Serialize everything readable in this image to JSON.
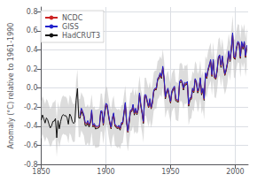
{
  "chart_data": {
    "type": "line",
    "ylabel": "Anomaly (°C) relative to 1961-1990",
    "xlim": [
      1850,
      2010
    ],
    "ylim": [
      -0.8,
      0.85
    ],
    "xticks": [
      1850,
      1900,
      1950,
      2000
    ],
    "yticks": [
      -0.8,
      -0.6,
      -0.4,
      -0.2,
      {
        "value": 0,
        "label": "0.0"
      },
      0.2,
      0.4,
      0.6,
      0.8
    ],
    "grid": true,
    "legend": "upper left",
    "x": [
      1850,
      1851,
      1852,
      1853,
      1854,
      1855,
      1856,
      1857,
      1858,
      1859,
      1860,
      1861,
      1862,
      1863,
      1864,
      1865,
      1866,
      1867,
      1868,
      1869,
      1870,
      1871,
      1872,
      1873,
      1874,
      1875,
      1876,
      1877,
      1878,
      1879,
      1880,
      1881,
      1882,
      1883,
      1884,
      1885,
      1886,
      1887,
      1888,
      1889,
      1890,
      1891,
      1892,
      1893,
      1894,
      1895,
      1896,
      1897,
      1898,
      1899,
      1900,
      1901,
      1902,
      1903,
      1904,
      1905,
      1906,
      1907,
      1908,
      1909,
      1910,
      1911,
      1912,
      1913,
      1914,
      1915,
      1916,
      1917,
      1918,
      1919,
      1920,
      1921,
      1922,
      1923,
      1924,
      1925,
      1926,
      1927,
      1928,
      1929,
      1930,
      1931,
      1932,
      1933,
      1934,
      1935,
      1936,
      1937,
      1938,
      1939,
      1940,
      1941,
      1942,
      1943,
      1944,
      1945,
      1946,
      1947,
      1948,
      1949,
      1950,
      1951,
      1952,
      1953,
      1954,
      1955,
      1956,
      1957,
      1958,
      1959,
      1960,
      1961,
      1962,
      1963,
      1964,
      1965,
      1966,
      1967,
      1968,
      1969,
      1970,
      1971,
      1972,
      1973,
      1974,
      1975,
      1976,
      1977,
      1978,
      1979,
      1980,
      1981,
      1982,
      1983,
      1984,
      1985,
      1986,
      1987,
      1988,
      1989,
      1990,
      1991,
      1992,
      1993,
      1994,
      1995,
      1996,
      1997,
      1998,
      1999,
      2000,
      2001,
      2002,
      2003,
      2004,
      2005,
      2006,
      2007,
      2008,
      2009
    ],
    "series": [
      {
        "name": "NCDC",
        "color": "#cc2222",
        "values": [
          null,
          null,
          null,
          null,
          null,
          null,
          null,
          null,
          null,
          null,
          null,
          null,
          null,
          null,
          null,
          null,
          null,
          null,
          null,
          null,
          null,
          null,
          null,
          null,
          null,
          null,
          null,
          null,
          null,
          null,
          -0.3,
          -0.22,
          -0.25,
          -0.29,
          -0.37,
          -0.38,
          -0.35,
          -0.39,
          -0.36,
          -0.24,
          -0.4,
          -0.38,
          -0.41,
          -0.41,
          -0.41,
          -0.4,
          -0.25,
          -0.25,
          -0.38,
          -0.26,
          -0.17,
          -0.18,
          -0.28,
          -0.36,
          -0.42,
          -0.32,
          -0.27,
          -0.39,
          -0.4,
          -0.42,
          -0.4,
          -0.43,
          -0.37,
          -0.37,
          -0.26,
          -0.16,
          -0.35,
          -0.46,
          -0.35,
          -0.24,
          -0.24,
          -0.18,
          -0.27,
          -0.22,
          -0.27,
          -0.22,
          -0.06,
          -0.18,
          -0.26,
          -0.36,
          -0.08,
          -0.08,
          -0.14,
          -0.2,
          -0.12,
          -0.21,
          -0.15,
          -0.03,
          -0.01,
          -0.01,
          0.09,
          0.11,
          0.15,
          0.11,
          0.22,
          0.1,
          -0.1,
          -0.04,
          -0.01,
          -0.08,
          -0.15,
          -0.04,
          -0.01,
          0.01,
          -0.12,
          -0.13,
          -0.14,
          0.06,
          0.08,
          0.06,
          -0.01,
          0.05,
          0.04,
          0.06,
          -0.18,
          -0.11,
          -0.11,
          -0.01,
          -0.04,
          0.09,
          0.06,
          -0.04,
          0.0,
          0.1,
          -0.06,
          -0.01,
          -0.12,
          0.15,
          0.11,
          0.19,
          0.24,
          0.29,
          0.13,
          0.29,
          0.11,
          0.1,
          0.18,
          0.32,
          0.34,
          0.23,
          0.33,
          0.22,
          0.14,
          0.19,
          0.26,
          0.38,
          0.29,
          0.41,
          0.57,
          0.32,
          0.31,
          0.42,
          0.48,
          0.47,
          0.32,
          0.48,
          0.42,
          0.48,
          0.33,
          0.44
        ]
      },
      {
        "name": "GISS",
        "color": "#2222cc",
        "values": [
          null,
          null,
          null,
          null,
          null,
          null,
          null,
          null,
          null,
          null,
          null,
          null,
          null,
          null,
          null,
          null,
          null,
          null,
          null,
          null,
          null,
          null,
          null,
          null,
          null,
          null,
          null,
          null,
          null,
          null,
          -0.29,
          -0.21,
          -0.24,
          -0.28,
          -0.36,
          -0.37,
          -0.34,
          -0.38,
          -0.35,
          -0.23,
          -0.39,
          -0.37,
          -0.4,
          -0.4,
          -0.4,
          -0.39,
          -0.24,
          -0.24,
          -0.37,
          -0.25,
          -0.16,
          -0.17,
          -0.27,
          -0.35,
          -0.41,
          -0.31,
          -0.26,
          -0.38,
          -0.39,
          -0.41,
          -0.39,
          -0.42,
          -0.36,
          -0.36,
          -0.25,
          -0.15,
          -0.34,
          -0.45,
          -0.34,
          -0.23,
          -0.23,
          -0.17,
          -0.26,
          -0.21,
          -0.26,
          -0.21,
          -0.05,
          -0.17,
          -0.25,
          -0.35,
          -0.07,
          -0.07,
          -0.13,
          -0.19,
          -0.11,
          -0.2,
          -0.14,
          -0.02,
          0.0,
          0.0,
          0.1,
          0.12,
          0.16,
          0.12,
          0.23,
          0.11,
          -0.09,
          -0.03,
          0.0,
          -0.07,
          -0.14,
          -0.03,
          0.0,
          0.02,
          -0.11,
          -0.12,
          -0.13,
          0.07,
          0.09,
          0.07,
          0.0,
          0.06,
          0.05,
          0.07,
          -0.17,
          -0.1,
          -0.1,
          0.0,
          -0.03,
          0.1,
          0.07,
          -0.03,
          0.01,
          0.11,
          -0.05,
          0.0,
          -0.11,
          0.16,
          0.12,
          0.2,
          0.25,
          0.3,
          0.14,
          0.3,
          0.12,
          0.11,
          0.19,
          0.33,
          0.35,
          0.24,
          0.34,
          0.23,
          0.15,
          0.2,
          0.27,
          0.39,
          0.3,
          0.42,
          0.58,
          0.33,
          0.32,
          0.43,
          0.49,
          0.48,
          0.33,
          0.49,
          0.43,
          0.49,
          0.34,
          0.45
        ]
      },
      {
        "name": "HadCRUT3",
        "color": "#111111",
        "values": [
          -0.336,
          -0.282,
          -0.32,
          -0.367,
          -0.313,
          -0.333,
          -0.378,
          -0.418,
          -0.398,
          -0.35,
          -0.347,
          -0.32,
          -0.521,
          -0.342,
          -0.427,
          -0.351,
          -0.298,
          -0.278,
          -0.29,
          -0.289,
          -0.311,
          -0.379,
          -0.272,
          -0.296,
          -0.349,
          -0.371,
          -0.358,
          -0.126,
          -0.004,
          -0.313,
          -0.317,
          -0.242,
          -0.274,
          -0.302,
          -0.394,
          -0.395,
          -0.368,
          -0.41,
          -0.37,
          -0.263,
          -0.409,
          -0.391,
          -0.43,
          -0.422,
          -0.421,
          -0.409,
          -0.257,
          -0.258,
          -0.39,
          -0.273,
          -0.182,
          -0.193,
          -0.293,
          -0.373,
          -0.428,
          -0.329,
          -0.279,
          -0.4,
          -0.413,
          -0.429,
          -0.413,
          -0.441,
          -0.382,
          -0.376,
          -0.27,
          -0.172,
          -0.362,
          -0.465,
          -0.363,
          -0.25,
          -0.246,
          -0.193,
          -0.283,
          -0.226,
          -0.28,
          -0.227,
          -0.07,
          -0.19,
          -0.267,
          -0.371,
          -0.092,
          -0.091,
          -0.15,
          -0.206,
          -0.13,
          -0.218,
          -0.158,
          -0.039,
          -0.015,
          -0.018,
          0.082,
          0.097,
          0.135,
          0.1,
          0.208,
          0.089,
          -0.113,
          -0.049,
          -0.018,
          -0.093,
          -0.158,
          -0.051,
          -0.018,
          0.003,
          -0.133,
          -0.142,
          -0.148,
          0.051,
          0.067,
          0.05,
          -0.021,
          0.04,
          0.031,
          0.055,
          -0.19,
          -0.124,
          -0.119,
          -0.022,
          -0.049,
          0.083,
          0.052,
          -0.052,
          -0.014,
          0.092,
          -0.072,
          -0.018,
          -0.129,
          0.138,
          0.099,
          0.181,
          0.233,
          0.278,
          0.122,
          0.282,
          0.104,
          0.093,
          0.174,
          0.311,
          0.332,
          0.216,
          0.319,
          0.208,
          0.133,
          0.182,
          0.253,
          0.369,
          0.279,
          0.401,
          0.562,
          0.313,
          0.302,
          0.411,
          0.471,
          0.462,
          0.311,
          0.469,
          0.408,
          0.473,
          0.32,
          0.43
        ],
        "upper": [
          -0.136,
          -0.082,
          -0.12,
          -0.167,
          -0.113,
          -0.133,
          -0.178,
          -0.218,
          -0.198,
          -0.15,
          -0.147,
          -0.12,
          -0.321,
          -0.142,
          -0.227,
          -0.151,
          -0.098,
          -0.078,
          -0.09,
          -0.089,
          -0.111,
          -0.179,
          -0.072,
          -0.096,
          -0.149,
          -0.171,
          -0.158,
          0.074,
          0.196,
          -0.113,
          -0.117,
          -0.042,
          -0.074,
          -0.102,
          -0.194,
          -0.195,
          -0.168,
          -0.21,
          -0.17,
          -0.063,
          -0.209,
          -0.191,
          -0.23,
          -0.222,
          -0.221,
          -0.209,
          -0.057,
          -0.058,
          -0.19,
          -0.073,
          0.018,
          0.007,
          -0.093,
          -0.173,
          -0.228,
          -0.129,
          -0.079,
          -0.2,
          -0.213,
          -0.229,
          -0.213,
          -0.241,
          -0.182,
          -0.176,
          -0.07,
          0.028,
          -0.162,
          -0.265,
          -0.163,
          -0.05,
          -0.046,
          0.007,
          -0.083,
          0.0,
          -0.08,
          0.0,
          0.13,
          -0.01,
          -0.067,
          -0.171,
          0.108,
          0.109,
          0.05,
          -0.006,
          0.07,
          -0.018,
          0.042,
          0.161,
          0.185,
          0.182,
          0.282,
          0.297,
          0.335,
          0.3,
          0.408,
          0.289,
          0.087,
          0.151,
          0.182,
          0.107,
          0.042,
          0.149,
          0.182,
          0.203,
          0.067,
          0.058,
          0.052,
          0.251,
          0.267,
          0.25,
          0.179,
          0.24,
          0.231,
          0.255,
          0.01,
          0.076,
          0.081,
          0.178,
          0.151,
          0.283,
          0.252,
          0.148,
          0.186,
          0.292,
          0.128,
          0.182,
          0.071,
          0.338,
          0.299,
          0.381,
          0.433,
          0.478,
          0.322,
          0.482,
          0.304,
          0.293,
          0.374,
          0.511,
          0.532,
          0.416,
          0.519,
          0.408,
          0.333,
          0.382,
          0.453,
          0.569,
          0.479,
          0.601,
          0.762,
          0.513,
          0.502,
          0.611,
          0.671,
          0.662,
          0.511,
          0.669,
          0.608,
          0.673,
          0.52,
          0.63
        ],
        "lower": [
          -0.536,
          -0.482,
          -0.52,
          -0.567,
          -0.513,
          -0.533,
          -0.578,
          -0.618,
          -0.598,
          -0.55,
          -0.547,
          -0.52,
          -0.721,
          -0.542,
          -0.627,
          -0.551,
          -0.498,
          -0.478,
          -0.49,
          -0.489,
          -0.511,
          -0.579,
          -0.472,
          -0.496,
          -0.549,
          -0.571,
          -0.558,
          -0.326,
          -0.204,
          -0.513,
          -0.517,
          -0.442,
          -0.474,
          -0.502,
          -0.594,
          -0.595,
          -0.568,
          -0.61,
          -0.57,
          -0.463,
          -0.609,
          -0.591,
          -0.63,
          -0.622,
          -0.621,
          -0.609,
          -0.457,
          -0.458,
          -0.59,
          -0.473,
          -0.382,
          -0.393,
          -0.493,
          -0.573,
          -0.628,
          -0.529,
          -0.479,
          -0.6,
          -0.613,
          -0.629,
          -0.613,
          -0.641,
          -0.582,
          -0.576,
          -0.47,
          -0.372,
          -0.562,
          -0.665,
          -0.563,
          -0.45,
          -0.446,
          -0.393,
          -0.483,
          -0.452,
          -0.48,
          -0.454,
          -0.27,
          -0.39,
          -0.467,
          -0.571,
          -0.292,
          -0.291,
          -0.35,
          -0.406,
          -0.33,
          -0.418,
          -0.358,
          -0.239,
          -0.215,
          -0.218,
          -0.118,
          -0.103,
          -0.065,
          -0.1,
          0.008,
          -0.111,
          -0.313,
          -0.249,
          -0.218,
          -0.293,
          -0.358,
          -0.251,
          -0.218,
          -0.197,
          -0.333,
          -0.342,
          -0.348,
          -0.149,
          -0.133,
          -0.15,
          -0.221,
          -0.16,
          -0.169,
          -0.145,
          -0.39,
          -0.324,
          -0.319,
          -0.222,
          -0.249,
          -0.117,
          -0.148,
          -0.252,
          -0.214,
          -0.108,
          -0.272,
          -0.218,
          -0.329,
          -0.062,
          -0.101,
          0.0,
          0.033,
          0.078,
          -0.078,
          0.082,
          -0.096,
          -0.107,
          -0.026,
          0.111,
          0.132,
          0.016,
          0.119,
          0.008,
          -0.067,
          -0.018,
          0.053,
          0.169,
          0.079,
          0.201,
          0.362,
          0.113,
          0.102,
          0.211,
          0.271,
          0.262,
          0.111,
          0.269,
          0.208,
          0.273,
          0.12,
          0.23
        ]
      }
    ]
  }
}
